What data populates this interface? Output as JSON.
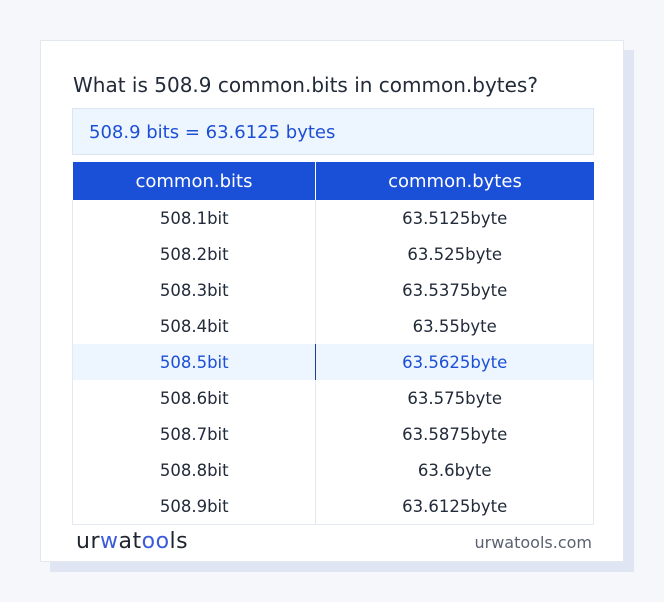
{
  "title": "What is 508.9 common.bits in common.bytes?",
  "result": "508.9 bits = 63.6125 bytes",
  "table": {
    "headers": [
      "common.bits",
      "common.bytes"
    ],
    "rows": [
      [
        "508.1bit",
        "63.5125byte"
      ],
      [
        "508.2bit",
        "63.525byte"
      ],
      [
        "508.3bit",
        "63.5375byte"
      ],
      [
        "508.4bit",
        "63.55byte"
      ],
      [
        "508.5bit",
        "63.5625byte"
      ],
      [
        "508.6bit",
        "63.575byte"
      ],
      [
        "508.7bit",
        "63.5875byte"
      ],
      [
        "508.8bit",
        "63.6byte"
      ],
      [
        "508.9bit",
        "63.6125byte"
      ]
    ],
    "highlighted_row": 4
  },
  "footer": {
    "logo": "urwatools",
    "site": "urwatools.com"
  },
  "colors": {
    "accent": "#1a4fd8",
    "highlight_bg": "#edf5ff"
  }
}
